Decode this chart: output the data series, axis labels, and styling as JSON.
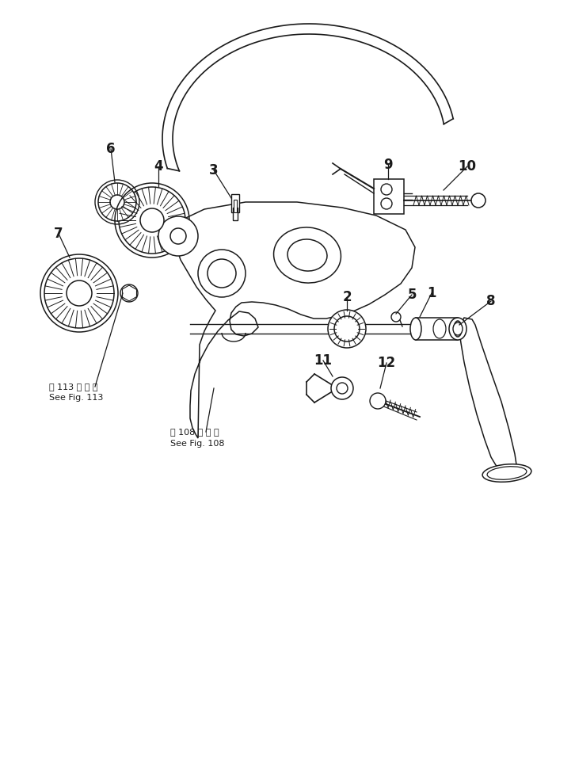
{
  "bg_color": "#ffffff",
  "line_color": "#1a1a1a",
  "fig_width": 7.26,
  "fig_height": 9.68,
  "dpi": 100,
  "label_fontsize": 12,
  "ref_fontsize": 8,
  "ref1_jp": "第 113 図 参 照",
  "ref1_en": "See Fig. 113",
  "ref2_jp": "第 108 図 参 照",
  "ref2_en": "See Fig. 108"
}
